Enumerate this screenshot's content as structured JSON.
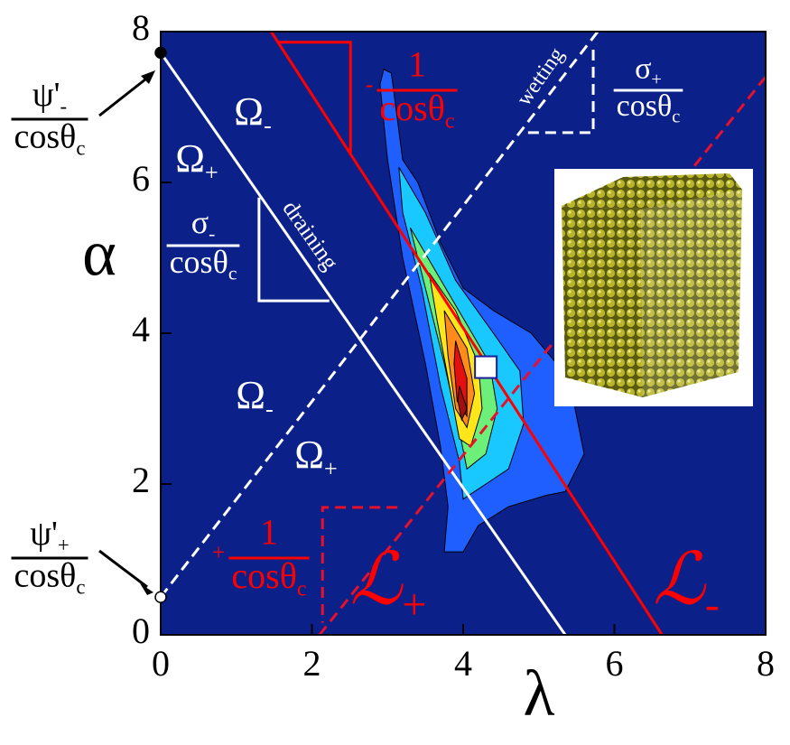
{
  "chart_data": {
    "type": "line",
    "xlabel": "λ",
    "ylabel": "α",
    "xlim": [
      0,
      8
    ],
    "ylim": [
      0,
      8
    ],
    "xticks": [
      0,
      2,
      4,
      6,
      8
    ],
    "yticks": [
      0,
      2,
      4,
      6,
      8
    ],
    "background": "#0b2089",
    "series": [
      {
        "color": "#ffffff",
        "dash": false,
        "x": [
          0,
          5.35
        ],
        "values": [
          7.72,
          0
        ]
      },
      {
        "color": "#ffffff",
        "dash": true,
        "x": [
          0,
          5.78
        ],
        "values": [
          0.5,
          8
        ]
      },
      {
        "color": "#ff0000",
        "dash": false,
        "x": [
          1.46,
          6.63
        ],
        "values": [
          8,
          0
        ]
      },
      {
        "color": "#e8102a",
        "dash": true,
        "x": [
          2.1,
          8
        ],
        "values": [
          0,
          7.4
        ]
      },
      {
        "color": "#ffffff",
        "dash": false,
        "x": [
          1.3,
          1.3,
          2.23
        ],
        "values": [
          5.8,
          4.43,
          4.43
        ]
      },
      {
        "color": "#ff0000",
        "dash": false,
        "x": [
          1.54,
          2.51,
          2.51
        ],
        "values": [
          7.86,
          7.86,
          6.36
        ]
      },
      {
        "color": "#ffffff",
        "dash": true,
        "x": [
          5.72,
          5.72,
          4.78
        ],
        "values": [
          7.76,
          6.66,
          6.66
        ]
      },
      {
        "color": "#e8102a",
        "dash": true,
        "x": [
          3.13,
          2.14,
          2.14
        ],
        "values": [
          1.69,
          1.69,
          0.16
        ]
      }
    ],
    "contours": [
      {
        "color": "#1f5fff",
        "x": [
          2.95,
          3.05,
          3.2,
          3.4,
          3.7,
          4.0,
          4.4,
          4.9,
          5.4,
          5.6,
          5.35,
          5.1,
          4.6,
          4.2,
          4.0,
          3.75,
          3.8,
          3.7,
          3.5,
          3.2,
          3.0,
          2.9
        ],
        "values": [
          7.5,
          7.45,
          6.3,
          6.0,
          5.2,
          4.6,
          4.3,
          4.0,
          3.4,
          2.4,
          1.9,
          1.85,
          1.7,
          1.45,
          1.1,
          1.1,
          1.7,
          2.5,
          3.6,
          5.0,
          6.3,
          7.3
        ]
      },
      {
        "color": "#19c8ff",
        "x": [
          3.15,
          3.5,
          3.9,
          4.4,
          4.75,
          4.8,
          4.6,
          4.3,
          4.0,
          3.95,
          3.7,
          3.45,
          3.2
        ],
        "values": [
          6.2,
          5.6,
          4.7,
          4.0,
          3.5,
          2.8,
          2.2,
          2.0,
          1.8,
          2.3,
          3.3,
          4.6,
          5.6
        ]
      },
      {
        "color": "#6df07a",
        "x": [
          3.3,
          3.65,
          4.0,
          4.35,
          4.45,
          4.3,
          4.05,
          3.95,
          3.75,
          3.5
        ],
        "values": [
          5.4,
          4.8,
          4.2,
          3.6,
          3.0,
          2.4,
          2.2,
          2.7,
          3.6,
          4.6
        ]
      },
      {
        "color": "#ffe61a",
        "x": [
          3.55,
          3.9,
          4.2,
          4.25,
          4.1,
          3.95,
          3.8,
          3.65
        ],
        "values": [
          4.8,
          4.3,
          3.6,
          3.0,
          2.5,
          2.6,
          3.4,
          4.2
        ]
      },
      {
        "color": "#ff8c1a",
        "x": [
          3.75,
          4.05,
          4.15,
          4.05,
          3.9,
          3.8
        ],
        "values": [
          4.3,
          3.8,
          3.2,
          2.75,
          3.0,
          3.7
        ]
      },
      {
        "color": "#e41010",
        "x": [
          3.9,
          4.05,
          4.05,
          3.92,
          3.88
        ],
        "values": [
          3.9,
          3.4,
          2.9,
          3.1,
          3.6
        ]
      },
      {
        "color": "#a01010",
        "x": [
          3.95,
          4.05,
          3.98,
          3.93
        ],
        "values": [
          3.3,
          3.0,
          2.85,
          3.1
        ]
      }
    ],
    "points": [
      {
        "x": 0,
        "y": 7.72,
        "color": "#000000",
        "shape": "circle"
      },
      {
        "x": 0,
        "y": 0.5,
        "color": "#ffffff",
        "shape": "circle"
      },
      {
        "x": 4.3,
        "y": 3.55,
        "color": "#ffffff",
        "shape": "square"
      }
    ],
    "annotations": [
      {
        "text": "Ω",
        "sub": "-",
        "color": "#ffffff"
      },
      {
        "text": "Ω",
        "sub": "+",
        "color": "#ffffff"
      },
      {
        "text": "Ω",
        "sub": "-",
        "color": "#ffffff"
      },
      {
        "text": "Ω",
        "sub": "+",
        "color": "#ffffff"
      },
      {
        "text": "draining",
        "color": "#ffffff"
      },
      {
        "text": "wetting",
        "color": "#ffffff"
      },
      {
        "text": "ℒ",
        "sub": "+",
        "color": "#ff0000"
      },
      {
        "text": "ℒ",
        "sub": "-",
        "color": "#ff0000"
      }
    ],
    "fractions": [
      {
        "num": "σ",
        "num_sub": "-",
        "den": "cosθ",
        "den_sub": "c",
        "color": "#ffffff"
      },
      {
        "num": "σ",
        "num_sub": "+",
        "den": "cosθ",
        "den_sub": "c",
        "color": "#ffffff"
      },
      {
        "sign": "-",
        "num": "1",
        "den": "cosθ",
        "den_sub": "c",
        "color": "#ff0000"
      },
      {
        "sign": "+",
        "num": "1",
        "den": "cosθ",
        "den_sub": "c",
        "color": "#ff0000"
      },
      {
        "num": "ψ'",
        "num_sub": "-",
        "den": "cosθ",
        "den_sub": "c",
        "color": "#000000"
      },
      {
        "num": "ψ'",
        "num_sub": "+",
        "den": "cosθ",
        "den_sub": "c",
        "color": "#000000"
      }
    ]
  }
}
